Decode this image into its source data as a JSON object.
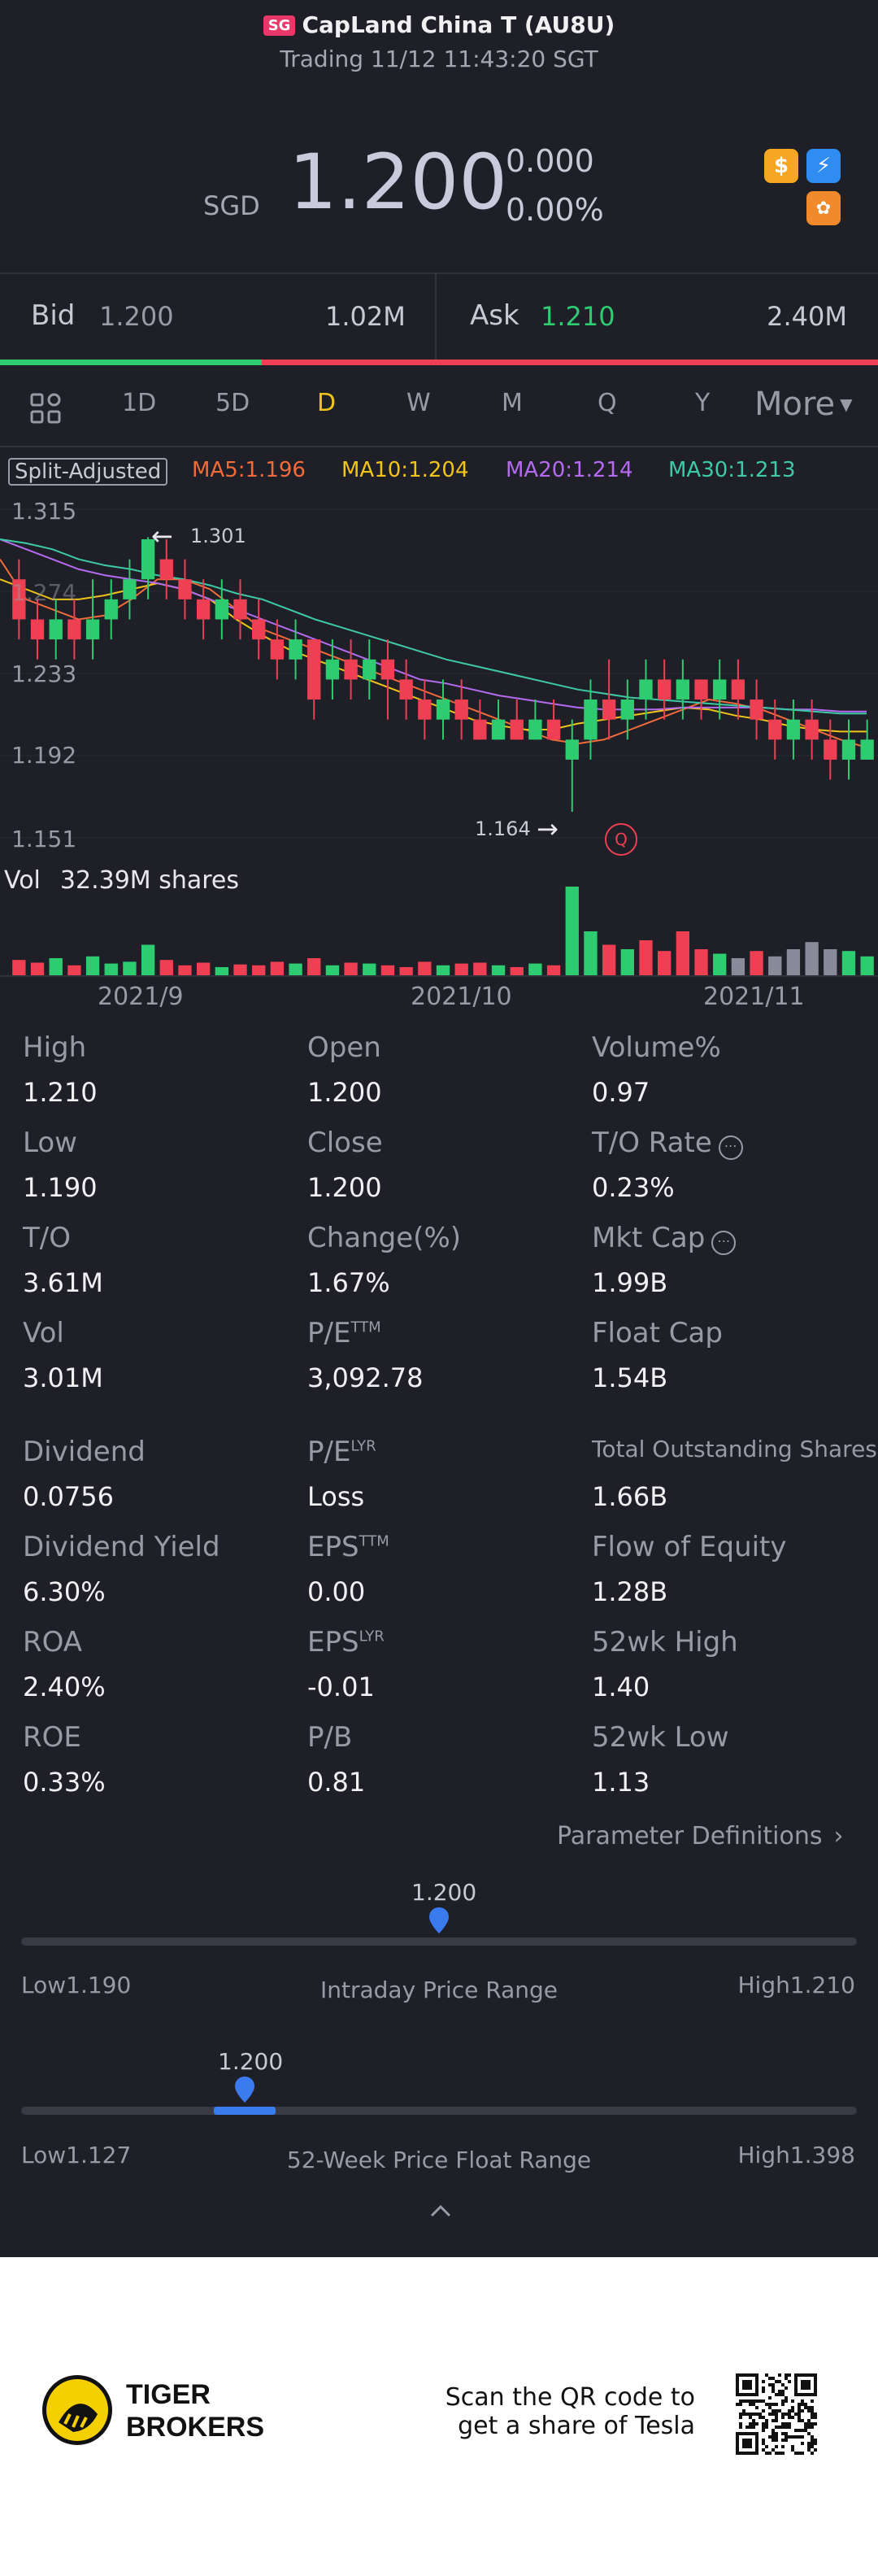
{
  "header": {
    "flag": "SG",
    "name": "CapLand China T (AU8U)",
    "status": "Trading 11/12 11:43:20 SGT"
  },
  "quote": {
    "currency": "SGD",
    "price": "1.200",
    "change": "0.000",
    "change_pct": "0.00%",
    "badges": [
      {
        "name": "dollar-badge-icon",
        "glyph": "$",
        "color": "#f5a623"
      },
      {
        "name": "flash-badge-icon",
        "glyph": "⚡",
        "color": "#2f8cf0"
      },
      {
        "name": "puzzle-badge-icon",
        "glyph": "✿",
        "color": "#f08a2c"
      }
    ]
  },
  "bidask": {
    "bid_label": "Bid",
    "bid_price": "1.200",
    "bid_size": "1.02M",
    "ask_label": "Ask",
    "ask_price": "1.210",
    "ask_size": "2.40M",
    "bid_ratio": 0.298
  },
  "tabs": [
    "1D",
    "5D",
    "D",
    "W",
    "M",
    "Q",
    "Y"
  ],
  "tab_active": "D",
  "tab_more": "More",
  "chart": {
    "adjust_label": "Split-Adjusted",
    "ma": [
      {
        "label": "MA5:1.196",
        "color": "#f26b3a"
      },
      {
        "label": "MA10:1.204",
        "color": "#f0c419"
      },
      {
        "label": "MA20:1.214",
        "color": "#b56bf0"
      },
      {
        "label": "MA30:1.213",
        "color": "#3ec9a7"
      }
    ],
    "y_ticks": [
      "1.315",
      "1.274",
      "1.233",
      "1.192",
      "1.151"
    ],
    "max_label": "1.301",
    "min_label": "1.164",
    "q_marker": "Q",
    "vol_label": "Vol",
    "vol_value": "32.39M shares",
    "x_ticks": [
      "2021/9",
      "2021/10",
      "2021/11"
    ]
  },
  "chart_data": {
    "type": "candlestick",
    "y_range": [
      1.151,
      1.315
    ],
    "candles": [
      [
        1.28,
        1.26,
        1.29,
        1.25,
        "down"
      ],
      [
        1.26,
        1.25,
        1.27,
        1.24,
        "down"
      ],
      [
        1.25,
        1.26,
        1.27,
        1.24,
        "up"
      ],
      [
        1.26,
        1.25,
        1.27,
        1.24,
        "down"
      ],
      [
        1.25,
        1.26,
        1.28,
        1.24,
        "up"
      ],
      [
        1.26,
        1.27,
        1.28,
        1.25,
        "up"
      ],
      [
        1.27,
        1.28,
        1.29,
        1.26,
        "up"
      ],
      [
        1.28,
        1.3,
        1.301,
        1.27,
        "up"
      ],
      [
        1.29,
        1.28,
        1.3,
        1.27,
        "down"
      ],
      [
        1.28,
        1.27,
        1.29,
        1.26,
        "down"
      ],
      [
        1.27,
        1.26,
        1.28,
        1.25,
        "down"
      ],
      [
        1.26,
        1.27,
        1.28,
        1.25,
        "up"
      ],
      [
        1.27,
        1.26,
        1.28,
        1.25,
        "down"
      ],
      [
        1.26,
        1.25,
        1.27,
        1.24,
        "down"
      ],
      [
        1.25,
        1.24,
        1.26,
        1.23,
        "down"
      ],
      [
        1.24,
        1.25,
        1.26,
        1.23,
        "up"
      ],
      [
        1.25,
        1.22,
        1.25,
        1.21,
        "down"
      ],
      [
        1.23,
        1.24,
        1.25,
        1.22,
        "up"
      ],
      [
        1.24,
        1.23,
        1.25,
        1.22,
        "down"
      ],
      [
        1.23,
        1.24,
        1.25,
        1.22,
        "up"
      ],
      [
        1.24,
        1.23,
        1.25,
        1.21,
        "down"
      ],
      [
        1.23,
        1.22,
        1.24,
        1.21,
        "down"
      ],
      [
        1.22,
        1.21,
        1.23,
        1.2,
        "down"
      ],
      [
        1.21,
        1.22,
        1.23,
        1.2,
        "up"
      ],
      [
        1.22,
        1.21,
        1.23,
        1.2,
        "down"
      ],
      [
        1.21,
        1.2,
        1.22,
        1.2,
        "down"
      ],
      [
        1.2,
        1.21,
        1.22,
        1.2,
        "up"
      ],
      [
        1.21,
        1.2,
        1.22,
        1.2,
        "down"
      ],
      [
        1.2,
        1.21,
        1.22,
        1.2,
        "up"
      ],
      [
        1.21,
        1.2,
        1.22,
        1.2,
        "down"
      ],
      [
        1.19,
        1.2,
        1.21,
        1.164,
        "up"
      ],
      [
        1.2,
        1.22,
        1.23,
        1.19,
        "up"
      ],
      [
        1.22,
        1.21,
        1.24,
        1.2,
        "down"
      ],
      [
        1.21,
        1.22,
        1.23,
        1.2,
        "up"
      ],
      [
        1.22,
        1.23,
        1.24,
        1.21,
        "up"
      ],
      [
        1.23,
        1.22,
        1.24,
        1.21,
        "down"
      ],
      [
        1.22,
        1.23,
        1.24,
        1.21,
        "up"
      ],
      [
        1.23,
        1.22,
        1.23,
        1.21,
        "down"
      ],
      [
        1.22,
        1.23,
        1.24,
        1.21,
        "up"
      ],
      [
        1.23,
        1.22,
        1.24,
        1.21,
        "down"
      ],
      [
        1.22,
        1.21,
        1.23,
        1.2,
        "down"
      ],
      [
        1.21,
        1.2,
        1.22,
        1.19,
        "down"
      ],
      [
        1.2,
        1.21,
        1.22,
        1.19,
        "up"
      ],
      [
        1.21,
        1.2,
        1.22,
        1.19,
        "down"
      ],
      [
        1.2,
        1.19,
        1.21,
        1.18,
        "down"
      ],
      [
        1.19,
        1.2,
        1.21,
        1.18,
        "up"
      ],
      [
        1.19,
        1.2,
        1.21,
        1.19,
        "up"
      ]
    ],
    "volumes": [
      0.18,
      0.15,
      0.2,
      0.12,
      0.22,
      0.14,
      0.16,
      0.35,
      0.18,
      0.12,
      0.15,
      0.1,
      0.13,
      0.12,
      0.16,
      0.14,
      0.2,
      0.12,
      0.15,
      0.14,
      0.12,
      0.1,
      0.16,
      0.12,
      0.14,
      0.15,
      0.12,
      0.1,
      0.14,
      0.12,
      1.0,
      0.5,
      0.35,
      0.3,
      0.4,
      0.28,
      0.5,
      0.3,
      0.25,
      0.2,
      0.28,
      0.22,
      0.3,
      0.38,
      0.3,
      0.28,
      0.22
    ],
    "vol_colors": [
      "#ee3f53",
      "#ee3f53",
      "#2ecc71",
      "#ee3f53",
      "#2ecc71",
      "#2ecc71",
      "#2ecc71",
      "#2ecc71",
      "#ee3f53",
      "#ee3f53",
      "#ee3f53",
      "#2ecc71",
      "#ee3f53",
      "#ee3f53",
      "#ee3f53",
      "#2ecc71",
      "#ee3f53",
      "#2ecc71",
      "#ee3f53",
      "#2ecc71",
      "#ee3f53",
      "#ee3f53",
      "#ee3f53",
      "#2ecc71",
      "#ee3f53",
      "#ee3f53",
      "#2ecc71",
      "#ee3f53",
      "#2ecc71",
      "#ee3f53",
      "#2ecc71",
      "#2ecc71",
      "#ee3f53",
      "#2ecc71",
      "#ee3f53",
      "#ee3f53",
      "#ee3f53",
      "#ee3f53",
      "#2ecc71",
      "#8a8a9a",
      "#ee3f53",
      "#8a8a9a",
      "#8a8a9a",
      "#8a8a9a",
      "#8a8a9a",
      "#2ecc71",
      "#2ecc71"
    ],
    "ma_lines": {
      "MA5": [
        1.29,
        1.27,
        1.265,
        1.26,
        1.262,
        1.27,
        1.28,
        1.28,
        1.275,
        1.265,
        1.255,
        1.25,
        1.245,
        1.24,
        1.235,
        1.23,
        1.225,
        1.22,
        1.215,
        1.21,
        1.205,
        1.2,
        1.198,
        1.2,
        1.205,
        1.21,
        1.215,
        1.22,
        1.218,
        1.215,
        1.21,
        1.205,
        1.2,
        1.196
      ],
      "MA10": [
        1.28,
        1.275,
        1.27,
        1.27,
        1.272,
        1.275,
        1.278,
        1.275,
        1.27,
        1.26,
        1.252,
        1.245,
        1.24,
        1.235,
        1.23,
        1.225,
        1.22,
        1.215,
        1.21,
        1.207,
        1.205,
        1.205,
        1.208,
        1.21,
        1.212,
        1.214,
        1.216,
        1.215,
        1.212,
        1.21,
        1.207,
        1.205,
        1.204,
        1.204
      ],
      "MA20": [
        1.3,
        1.295,
        1.29,
        1.285,
        1.282,
        1.28,
        1.278,
        1.275,
        1.27,
        1.265,
        1.26,
        1.255,
        1.25,
        1.245,
        1.24,
        1.235,
        1.23,
        1.228,
        1.225,
        1.222,
        1.22,
        1.218,
        1.216,
        1.215,
        1.215,
        1.215,
        1.216,
        1.216,
        1.216,
        1.216,
        1.215,
        1.215,
        1.214,
        1.214
      ],
      "MA30": [
        1.3,
        1.298,
        1.295,
        1.29,
        1.287,
        1.285,
        1.282,
        1.28,
        1.277,
        1.273,
        1.27,
        1.265,
        1.26,
        1.256,
        1.252,
        1.248,
        1.244,
        1.24,
        1.237,
        1.234,
        1.231,
        1.228,
        1.225,
        1.223,
        1.221,
        1.22,
        1.219,
        1.218,
        1.217,
        1.216,
        1.215,
        1.214,
        1.213,
        1.213
      ]
    }
  },
  "stats": {
    "col1": [
      {
        "label": "High",
        "value": "1.210"
      },
      {
        "label": "Low",
        "value": "1.190"
      },
      {
        "label": "T/O",
        "value": "3.61M"
      },
      {
        "label": "Vol",
        "value": "3.01M"
      },
      {
        "label": "Dividend",
        "value": "0.0756"
      },
      {
        "label": "Dividend Yield",
        "value": "6.30%"
      },
      {
        "label": "ROA",
        "value": "2.40%"
      },
      {
        "label": "ROE",
        "value": "0.33%"
      }
    ],
    "col2": [
      {
        "label": "Open",
        "value": "1.200"
      },
      {
        "label": "Close",
        "value": "1.200"
      },
      {
        "label": "Change(%)",
        "value": "1.67%"
      },
      {
        "label": "P/E",
        "sup": "TTM",
        "value": "3,092.78"
      },
      {
        "label": "P/E",
        "sup": "LYR",
        "value": "Loss"
      },
      {
        "label": "EPS",
        "sup": "TTM",
        "value": "0.00"
      },
      {
        "label": "EPS",
        "sup": "LYR",
        "value": "-0.01"
      },
      {
        "label": "P/B",
        "value": "0.81"
      }
    ],
    "col3": [
      {
        "label": "Volume%",
        "value": "0.97"
      },
      {
        "label": "T/O Rate",
        "value": "0.23%"
      },
      {
        "label": "Mkt Cap",
        "value": "1.99B"
      },
      {
        "label": "Float Cap",
        "value": "1.54B"
      },
      {
        "label": "Total Outstanding Shares",
        "value": "1.66B"
      },
      {
        "label": "Flow of Equity",
        "value": "1.28B"
      },
      {
        "label": "52wk High",
        "value": "1.40"
      },
      {
        "label": "52wk Low",
        "value": "1.13"
      }
    ],
    "param_link": "Parameter Definitions"
  },
  "ranges": {
    "intraday": {
      "marker": "1.200",
      "low": "Low1.190",
      "high": "High1.210",
      "title": "Intraday Price Range",
      "position": 0.5
    },
    "week52": {
      "marker": "1.200",
      "low": "Low1.127",
      "high": "High1.398",
      "title": "52-Week Price Float Range",
      "position": 0.27
    }
  },
  "footer": {
    "brand_line1": "TIGER",
    "brand_line2": "BROKERS",
    "promo_line1": "Scan the QR code to",
    "promo_line2": "get a share of Tesla"
  }
}
